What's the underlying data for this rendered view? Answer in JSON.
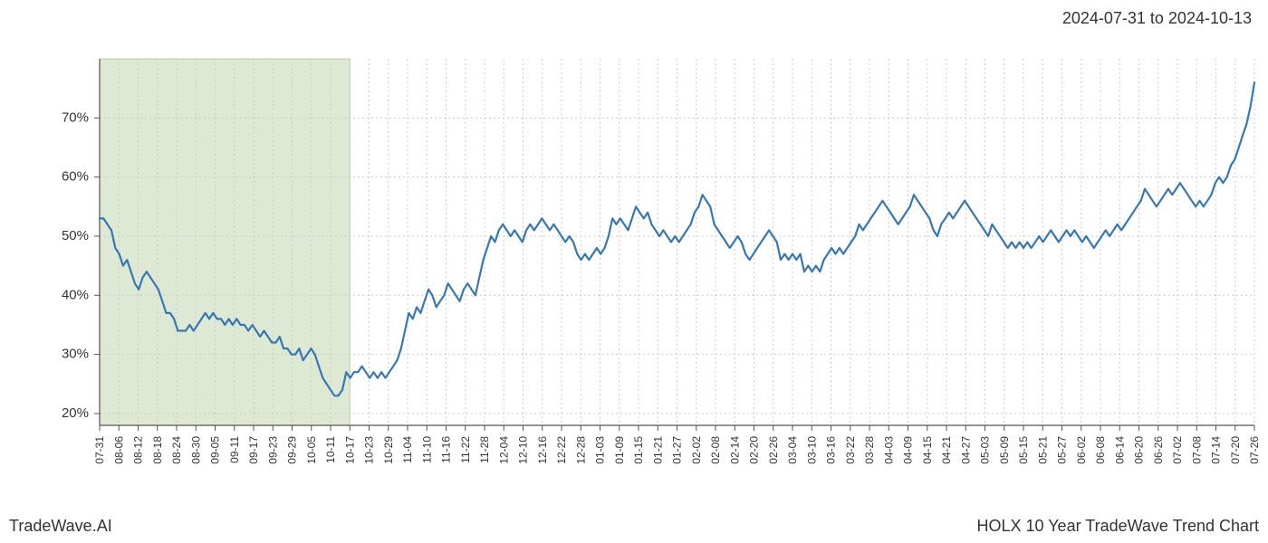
{
  "header": {
    "date_range": "2024-07-31 to 2024-10-13"
  },
  "footer": {
    "left": "TradeWave.AI",
    "right": "HOLX 10 Year TradeWave Trend Chart"
  },
  "chart": {
    "type": "line",
    "background_color": "#ffffff",
    "plot_border_color": "#555555",
    "grid_color": "#cccccc",
    "grid_dash": "2,3",
    "line_color": "#3578b5",
    "line_width": 2.2,
    "highlight_fill": "#dde9d3",
    "highlight_border": "#b8cfa8",
    "highlight_range": [
      "07-31",
      "10-13"
    ],
    "ylim": [
      18,
      80
    ],
    "yticks": [
      20,
      30,
      40,
      50,
      60,
      70
    ],
    "ytick_labels": [
      "20%",
      "30%",
      "40%",
      "50%",
      "60%",
      "70%"
    ],
    "ytick_fontsize": 15,
    "xtick_fontsize": 12,
    "xtick_rotation": 90,
    "x_labels": [
      "07-31",
      "08-06",
      "08-12",
      "08-18",
      "08-24",
      "08-30",
      "09-05",
      "09-11",
      "09-17",
      "09-23",
      "09-29",
      "10-05",
      "10-11",
      "10-17",
      "10-23",
      "10-29",
      "11-04",
      "11-10",
      "11-16",
      "11-22",
      "11-28",
      "12-04",
      "12-10",
      "12-16",
      "12-22",
      "12-28",
      "01-03",
      "01-09",
      "01-15",
      "01-21",
      "01-27",
      "02-02",
      "02-08",
      "02-14",
      "02-20",
      "02-26",
      "03-04",
      "03-10",
      "03-16",
      "03-22",
      "03-28",
      "04-03",
      "04-09",
      "04-15",
      "04-21",
      "04-27",
      "05-03",
      "05-09",
      "05-15",
      "05-21",
      "05-27",
      "06-02",
      "06-08",
      "06-14",
      "06-20",
      "06-26",
      "07-02",
      "07-08",
      "07-14",
      "07-20",
      "07-26"
    ],
    "series": [
      53,
      53,
      52,
      51,
      48,
      47,
      45,
      46,
      44,
      42,
      41,
      43,
      44,
      43,
      42,
      41,
      39,
      37,
      37,
      36,
      34,
      34,
      34,
      35,
      34,
      35,
      36,
      37,
      36,
      37,
      36,
      36,
      35,
      36,
      35,
      36,
      35,
      35,
      34,
      35,
      34,
      33,
      34,
      33,
      32,
      32,
      33,
      31,
      31,
      30,
      30,
      31,
      29,
      30,
      31,
      30,
      28,
      26,
      25,
      24,
      23,
      23,
      24,
      27,
      26,
      27,
      27,
      28,
      27,
      26,
      27,
      26,
      27,
      26,
      27,
      28,
      29,
      31,
      34,
      37,
      36,
      38,
      37,
      39,
      41,
      40,
      38,
      39,
      40,
      42,
      41,
      40,
      39,
      41,
      42,
      41,
      40,
      43,
      46,
      48,
      50,
      49,
      51,
      52,
      51,
      50,
      51,
      50,
      49,
      51,
      52,
      51,
      52,
      53,
      52,
      51,
      52,
      51,
      50,
      49,
      50,
      49,
      47,
      46,
      47,
      46,
      47,
      48,
      47,
      48,
      50,
      53,
      52,
      53,
      52,
      51,
      53,
      55,
      54,
      53,
      54,
      52,
      51,
      50,
      51,
      50,
      49,
      50,
      49,
      50,
      51,
      52,
      54,
      55,
      57,
      56,
      55,
      52,
      51,
      50,
      49,
      48,
      49,
      50,
      49,
      47,
      46,
      47,
      48,
      49,
      50,
      51,
      50,
      49,
      46,
      47,
      46,
      47,
      46,
      47,
      44,
      45,
      44,
      45,
      44,
      46,
      47,
      48,
      47,
      48,
      47,
      48,
      49,
      50,
      52,
      51,
      52,
      53,
      54,
      55,
      56,
      55,
      54,
      53,
      52,
      53,
      54,
      55,
      57,
      56,
      55,
      54,
      53,
      51,
      50,
      52,
      53,
      54,
      53,
      54,
      55,
      56,
      55,
      54,
      53,
      52,
      51,
      50,
      52,
      51,
      50,
      49,
      48,
      49,
      48,
      49,
      48,
      49,
      48,
      49,
      50,
      49,
      50,
      51,
      50,
      49,
      50,
      51,
      50,
      51,
      50,
      49,
      50,
      49,
      48,
      49,
      50,
      51,
      50,
      51,
      52,
      51,
      52,
      53,
      54,
      55,
      56,
      58,
      57,
      56,
      55,
      56,
      57,
      58,
      57,
      58,
      59,
      58,
      57,
      56,
      55,
      56,
      55,
      56,
      57,
      59,
      60,
      59,
      60,
      62,
      63,
      65,
      67,
      69,
      72,
      76
    ]
  }
}
